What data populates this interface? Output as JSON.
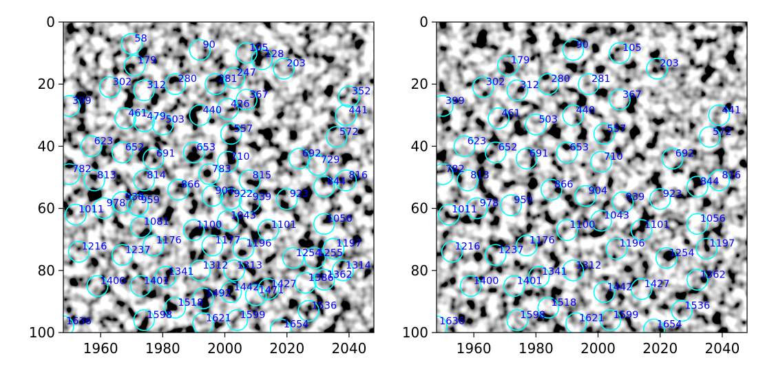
{
  "chart_data": [
    {
      "type": "scatter",
      "panel": "left",
      "background": "grayscale microscopy image (blob texture)",
      "marker": "circle",
      "marker_color": "#00ffff",
      "label_color": "#0000ff",
      "xlim": [
        1948,
        2048
      ],
      "ylim": [
        100,
        0
      ],
      "y_axis_inverted": true,
      "xticks": [
        "1960",
        "1980",
        "2000",
        "2020",
        "2040"
      ],
      "yticks": [
        "0",
        "20",
        "40",
        "60",
        "80",
        "100"
      ],
      "points": [
        {
          "id": "58",
          "x": 1970,
          "y": 7
        },
        {
          "id": "90",
          "x": 1992,
          "y": 9
        },
        {
          "id": "105",
          "x": 2007,
          "y": 10
        },
        {
          "id": "128",
          "x": 2012,
          "y": 12
        },
        {
          "id": "179",
          "x": 1971,
          "y": 14
        },
        {
          "id": "203",
          "x": 2019,
          "y": 15
        },
        {
          "id": "247",
          "x": 2003,
          "y": 18
        },
        {
          "id": "280",
          "x": 1984,
          "y": 20
        },
        {
          "id": "281",
          "x": 1997,
          "y": 20
        },
        {
          "id": "302",
          "x": 1963,
          "y": 21
        },
        {
          "id": "312",
          "x": 1974,
          "y": 22
        },
        {
          "id": "352",
          "x": 2040,
          "y": 24
        },
        {
          "id": "367",
          "x": 2007,
          "y": 25
        },
        {
          "id": "399",
          "x": 1950,
          "y": 27
        },
        {
          "id": "426",
          "x": 2001,
          "y": 28
        },
        {
          "id": "440",
          "x": 1992,
          "y": 30
        },
        {
          "id": "441",
          "x": 2039,
          "y": 30
        },
        {
          "id": "461",
          "x": 1968,
          "y": 31
        },
        {
          "id": "479",
          "x": 1974,
          "y": 32
        },
        {
          "id": "503",
          "x": 1980,
          "y": 33
        },
        {
          "id": "557",
          "x": 2002,
          "y": 36
        },
        {
          "id": "572",
          "x": 2036,
          "y": 37
        },
        {
          "id": "623",
          "x": 1957,
          "y": 40
        },
        {
          "id": "652",
          "x": 1967,
          "y": 42
        },
        {
          "id": "653",
          "x": 1990,
          "y": 42
        },
        {
          "id": "691",
          "x": 1977,
          "y": 44
        },
        {
          "id": "692",
          "x": 2024,
          "y": 44
        },
        {
          "id": "710",
          "x": 2001,
          "y": 45
        },
        {
          "id": "729",
          "x": 2030,
          "y": 46
        },
        {
          "id": "782",
          "x": 1950,
          "y": 49
        },
        {
          "id": "783",
          "x": 1995,
          "y": 49
        },
        {
          "id": "813",
          "x": 1958,
          "y": 51
        },
        {
          "id": "814",
          "x": 1974,
          "y": 51
        },
        {
          "id": "815",
          "x": 2008,
          "y": 51
        },
        {
          "id": "816",
          "x": 2039,
          "y": 51
        },
        {
          "id": "844",
          "x": 2032,
          "y": 53
        },
        {
          "id": "866",
          "x": 1985,
          "y": 54
        },
        {
          "id": "904",
          "x": 1996,
          "y": 56
        },
        {
          "id": "922",
          "x": 2002,
          "y": 57
        },
        {
          "id": "923",
          "x": 2020,
          "y": 57
        },
        {
          "id": "938",
          "x": 1967,
          "y": 58
        },
        {
          "id": "939",
          "x": 2008,
          "y": 58
        },
        {
          "id": "959",
          "x": 1972,
          "y": 59
        },
        {
          "id": "978",
          "x": 1961,
          "y": 60
        },
        {
          "id": "1011",
          "x": 1952,
          "y": 62
        },
        {
          "id": "1043",
          "x": 2001,
          "y": 64
        },
        {
          "id": "1056",
          "x": 2032,
          "y": 65
        },
        {
          "id": "1081",
          "x": 1973,
          "y": 66
        },
        {
          "id": "1100",
          "x": 1990,
          "y": 67
        },
        {
          "id": "1101",
          "x": 2014,
          "y": 67
        },
        {
          "id": "1176",
          "x": 1977,
          "y": 72
        },
        {
          "id": "1177",
          "x": 1996,
          "y": 72
        },
        {
          "id": "1196",
          "x": 2006,
          "y": 73
        },
        {
          "id": "1197",
          "x": 2035,
          "y": 73
        },
        {
          "id": "1216",
          "x": 1953,
          "y": 74
        },
        {
          "id": "1237",
          "x": 1967,
          "y": 75
        },
        {
          "id": "1254",
          "x": 2022,
          "y": 76
        },
        {
          "id": "1255",
          "x": 2029,
          "y": 76
        },
        {
          "id": "1312",
          "x": 1992,
          "y": 80
        },
        {
          "id": "1313",
          "x": 2003,
          "y": 80
        },
        {
          "id": "1314",
          "x": 2038,
          "y": 80
        },
        {
          "id": "1341",
          "x": 1981,
          "y": 82
        },
        {
          "id": "1362",
          "x": 2032,
          "y": 83
        },
        {
          "id": "1386",
          "x": 2026,
          "y": 84
        },
        {
          "id": "1400",
          "x": 1959,
          "y": 85
        },
        {
          "id": "1401",
          "x": 1973,
          "y": 85
        },
        {
          "id": "1427",
          "x": 2014,
          "y": 86
        },
        {
          "id": "1442",
          "x": 2002,
          "y": 87
        },
        {
          "id": "1471",
          "x": 2010,
          "y": 88
        },
        {
          "id": "1492",
          "x": 1993,
          "y": 89
        },
        {
          "id": "1518",
          "x": 1984,
          "y": 92
        },
        {
          "id": "1536",
          "x": 2027,
          "y": 93
        },
        {
          "id": "1598",
          "x": 1974,
          "y": 96
        },
        {
          "id": "1599",
          "x": 2004,
          "y": 96
        },
        {
          "id": "1621",
          "x": 1993,
          "y": 97
        },
        {
          "id": "1636",
          "x": 1948,
          "y": 98
        },
        {
          "id": "1654",
          "x": 2018,
          "y": 99
        }
      ]
    },
    {
      "type": "scatter",
      "panel": "right",
      "background": "grayscale microscopy image (blob texture)",
      "marker": "circle",
      "marker_color": "#00ffff",
      "label_color": "#0000ff",
      "xlim": [
        1948,
        2048
      ],
      "ylim": [
        100,
        0
      ],
      "y_axis_inverted": true,
      "xticks": [
        "1960",
        "1980",
        "2000",
        "2020",
        "2040"
      ],
      "yticks": [
        "0",
        "20",
        "40",
        "60",
        "80",
        "100"
      ],
      "points": [
        {
          "id": "90",
          "x": 1992,
          "y": 9
        },
        {
          "id": "105",
          "x": 2007,
          "y": 10
        },
        {
          "id": "179",
          "x": 1971,
          "y": 14
        },
        {
          "id": "203",
          "x": 2019,
          "y": 15
        },
        {
          "id": "280",
          "x": 1984,
          "y": 20
        },
        {
          "id": "281",
          "x": 1997,
          "y": 20
        },
        {
          "id": "302",
          "x": 1963,
          "y": 21
        },
        {
          "id": "312",
          "x": 1974,
          "y": 22
        },
        {
          "id": "367",
          "x": 2007,
          "y": 25
        },
        {
          "id": "399",
          "x": 1950,
          "y": 27
        },
        {
          "id": "440",
          "x": 1992,
          "y": 30
        },
        {
          "id": "441",
          "x": 2039,
          "y": 30
        },
        {
          "id": "461",
          "x": 1968,
          "y": 31
        },
        {
          "id": "503",
          "x": 1980,
          "y": 33
        },
        {
          "id": "557",
          "x": 2002,
          "y": 36
        },
        {
          "id": "572",
          "x": 2036,
          "y": 37
        },
        {
          "id": "623",
          "x": 1957,
          "y": 40
        },
        {
          "id": "652",
          "x": 1967,
          "y": 42
        },
        {
          "id": "653",
          "x": 1990,
          "y": 42
        },
        {
          "id": "691",
          "x": 1977,
          "y": 44
        },
        {
          "id": "692",
          "x": 2024,
          "y": 44
        },
        {
          "id": "710",
          "x": 2001,
          "y": 45
        },
        {
          "id": "782",
          "x": 1950,
          "y": 49
        },
        {
          "id": "813",
          "x": 1958,
          "y": 51
        },
        {
          "id": "816",
          "x": 2039,
          "y": 51
        },
        {
          "id": "844",
          "x": 2032,
          "y": 53
        },
        {
          "id": "866",
          "x": 1985,
          "y": 54
        },
        {
          "id": "904",
          "x": 1996,
          "y": 56
        },
        {
          "id": "923",
          "x": 2020,
          "y": 57
        },
        {
          "id": "939",
          "x": 2008,
          "y": 58
        },
        {
          "id": "959",
          "x": 1972,
          "y": 59
        },
        {
          "id": "978",
          "x": 1961,
          "y": 60
        },
        {
          "id": "1011",
          "x": 1952,
          "y": 62
        },
        {
          "id": "1043",
          "x": 2001,
          "y": 64
        },
        {
          "id": "1056",
          "x": 2032,
          "y": 65
        },
        {
          "id": "1100",
          "x": 1990,
          "y": 67
        },
        {
          "id": "1101",
          "x": 2014,
          "y": 67
        },
        {
          "id": "1176",
          "x": 1977,
          "y": 72
        },
        {
          "id": "1196",
          "x": 2006,
          "y": 73
        },
        {
          "id": "1197",
          "x": 2035,
          "y": 73
        },
        {
          "id": "1216",
          "x": 1953,
          "y": 74
        },
        {
          "id": "1237",
          "x": 1967,
          "y": 75
        },
        {
          "id": "1254",
          "x": 2022,
          "y": 76
        },
        {
          "id": "1312",
          "x": 1992,
          "y": 80
        },
        {
          "id": "1341",
          "x": 1981,
          "y": 82
        },
        {
          "id": "1362",
          "x": 2032,
          "y": 83
        },
        {
          "id": "1400",
          "x": 1959,
          "y": 85
        },
        {
          "id": "1401",
          "x": 1973,
          "y": 85
        },
        {
          "id": "1427",
          "x": 2014,
          "y": 86
        },
        {
          "id": "1442",
          "x": 2002,
          "y": 87
        },
        {
          "id": "1518",
          "x": 1984,
          "y": 92
        },
        {
          "id": "1536",
          "x": 2027,
          "y": 93
        },
        {
          "id": "1598",
          "x": 1974,
          "y": 96
        },
        {
          "id": "1599",
          "x": 2004,
          "y": 96
        },
        {
          "id": "1621",
          "x": 1993,
          "y": 97
        },
        {
          "id": "1636",
          "x": 1948,
          "y": 98
        },
        {
          "id": "1654",
          "x": 2018,
          "y": 99
        }
      ]
    }
  ]
}
